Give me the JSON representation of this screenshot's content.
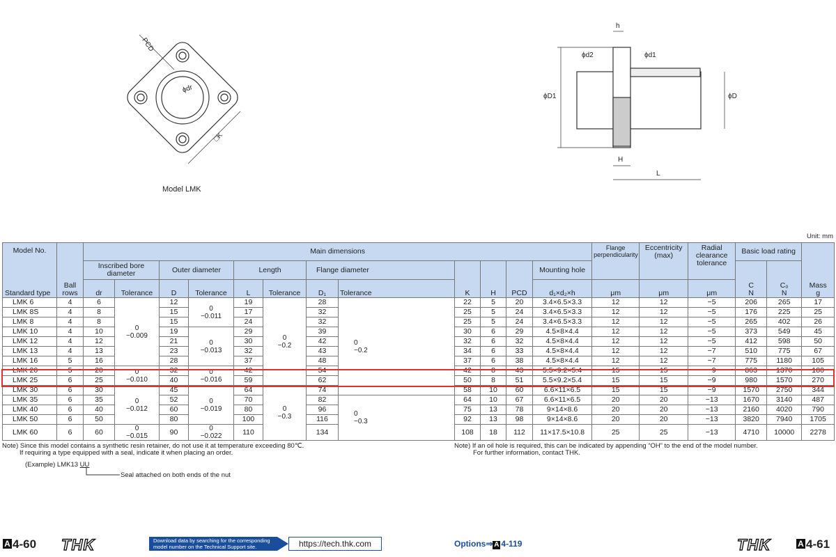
{
  "drawings": {
    "front_view": {
      "pcd": "PCD",
      "bore": "ϕdr",
      "square": "□K",
      "caption": "Model LMK"
    },
    "side_view": {
      "h": "h",
      "d2": "ϕd2",
      "d1": "ϕd1",
      "D1": "ϕD1",
      "D": "ϕD",
      "H": "H",
      "L": "L"
    }
  },
  "unit": "Unit: mm",
  "table": {
    "header": {
      "model_no": "Model No.",
      "standard_type": "Standard type",
      "ball_rows": "Ball rows",
      "main_dimensions": "Main dimensions",
      "inscribed_bore_diameter": "Inscribed bore diameter",
      "dr": "dr",
      "tolerance": "Tolerance",
      "outer_diameter": "Outer diameter",
      "D": "D",
      "length": "Length",
      "L": "L",
      "flange_diameter": "Flange diameter",
      "D1": "D₁",
      "K": "K",
      "H": "H",
      "PCD": "PCD",
      "mounting_hole": "Mounting hole",
      "mounting_hole_dims": "d₁×d₂×h",
      "flange_perpendicularity": "Flange perpendicularity",
      "eccentricity": "Eccentricity (max)",
      "radial_clearance": "Radial clearance tolerance",
      "micrometer": "μm",
      "basic_load_rating": "Basic load rating",
      "C": "C",
      "C0": "C₀",
      "newton": "N",
      "mass": "Mass",
      "gram": "g"
    },
    "rows": [
      [
        "LMK 6",
        4,
        6,
        {
          "upper": "0",
          "lower": "−0.009"
        },
        12,
        {
          "upper": "0",
          "lower": "−0.011"
        },
        19,
        {
          "upper": "0",
          "lower": "−0.2"
        },
        28,
        {
          "upper": "0",
          "lower": "−0.2"
        },
        22,
        5,
        20,
        "3.4×6.5×3.3",
        12,
        12,
        "−5",
        206,
        265,
        17
      ],
      [
        "LMK 8S",
        4,
        8,
        null,
        15,
        null,
        17,
        null,
        32,
        null,
        25,
        5,
        24,
        "3.4×6.5×3.3",
        12,
        12,
        "−5",
        176,
        225,
        25
      ],
      [
        "LMK 8",
        4,
        8,
        null,
        15,
        null,
        24,
        null,
        32,
        null,
        25,
        5,
        24,
        "3.4×6.5×3.3",
        12,
        12,
        "−5",
        265,
        402,
        26
      ],
      [
        "LMK 10",
        4,
        10,
        null,
        19,
        {
          "upper": "0",
          "lower": "−0.013"
        },
        29,
        null,
        39,
        null,
        30,
        6,
        29,
        "4.5×8×4.4",
        12,
        12,
        "−5",
        373,
        549,
        45
      ],
      [
        "LMK 12",
        4,
        12,
        null,
        21,
        null,
        30,
        null,
        42,
        null,
        32,
        6,
        32,
        "4.5×8×4.4",
        12,
        12,
        "−5",
        412,
        598,
        50
      ],
      [
        "LMK 13",
        4,
        13,
        null,
        23,
        null,
        32,
        null,
        43,
        null,
        34,
        6,
        33,
        "4.5×8×4.4",
        12,
        12,
        "−7",
        510,
        775,
        67
      ],
      [
        "LMK 16",
        5,
        16,
        null,
        28,
        null,
        37,
        null,
        48,
        null,
        37,
        6,
        38,
        "4.5×8×4.4",
        12,
        12,
        "−7",
        775,
        1180,
        105
      ],
      [
        "LMK 20",
        5,
        20,
        {
          "upper": "0",
          "lower": "−0.010"
        },
        32,
        {
          "upper": "0",
          "lower": "−0.016"
        },
        42,
        null,
        54,
        null,
        42,
        8,
        43,
        "5.5×9.2×5.4",
        15,
        15,
        "−9",
        863,
        1370,
        180
      ],
      [
        "LMK 25",
        6,
        25,
        null,
        40,
        null,
        59,
        null,
        62,
        null,
        50,
        8,
        51,
        "5.5×9.2×5.4",
        15,
        15,
        "−9",
        980,
        1570,
        270
      ],
      [
        "LMK 30",
        6,
        30,
        {
          "upper": "0",
          "lower": "−0.012"
        },
        45,
        {
          "upper": "0",
          "lower": "−0.019"
        },
        64,
        {
          "upper": "0",
          "lower": "−0.3"
        },
        74,
        null,
        58,
        10,
        60,
        "6.6×11×6.5",
        15,
        15,
        "−9",
        1570,
        2750,
        344
      ],
      [
        "LMK 35",
        6,
        35,
        null,
        52,
        null,
        70,
        null,
        82,
        {
          "upper": "0",
          "lower": "−0.3"
        },
        64,
        10,
        67,
        "6.6×11×6.5",
        20,
        20,
        "−13",
        1670,
        3140,
        487
      ],
      [
        "LMK 40",
        6,
        40,
        null,
        60,
        null,
        80,
        null,
        96,
        null,
        75,
        13,
        78,
        "9×14×8.6",
        20,
        20,
        "−13",
        2160,
        4020,
        790
      ],
      [
        "LMK 50",
        6,
        50,
        null,
        80,
        null,
        100,
        null,
        116,
        null,
        92,
        13,
        98,
        "9×14×8.6",
        20,
        20,
        "−13",
        3820,
        7940,
        1705
      ],
      [
        "LMK 60",
        6,
        60,
        {
          "upper": "0",
          "lower": "−0.015"
        },
        90,
        {
          "upper": "0",
          "lower": "−0.022"
        },
        110,
        null,
        134,
        null,
        108,
        18,
        112,
        "11×17.5×10.8",
        25,
        25,
        "−13",
        4710,
        10000,
        2278
      ]
    ]
  },
  "notes": {
    "left": [
      "Note) Since this model contains a synthetic resin retainer, do not use it at temperature exceeding 80℃.",
      "If requiring a type equipped with a seal, indicate it when placing an order."
    ],
    "example": "(Example) LMK13 ",
    "example_suffix": "UU",
    "example_caption": "Seal attached on both ends of the nut",
    "right": [
      "Note) If an oil hole is required, this can be indicated by appending “OH” to the end of the model number.",
      "For further information, contact THK."
    ]
  },
  "footer": {
    "page_left": {
      "mark": "A",
      "number": "4-60"
    },
    "logo_left": "THK",
    "banner": "Download data by searching for the corresponding model number on the Technical Support site.",
    "url": "https://tech.thk.com",
    "options": "Options⇒",
    "options_page": {
      "mark": "A",
      "number": "4-119"
    },
    "logo_right": "THK",
    "page_right": {
      "mark": "A",
      "number": "4-61"
    }
  }
}
